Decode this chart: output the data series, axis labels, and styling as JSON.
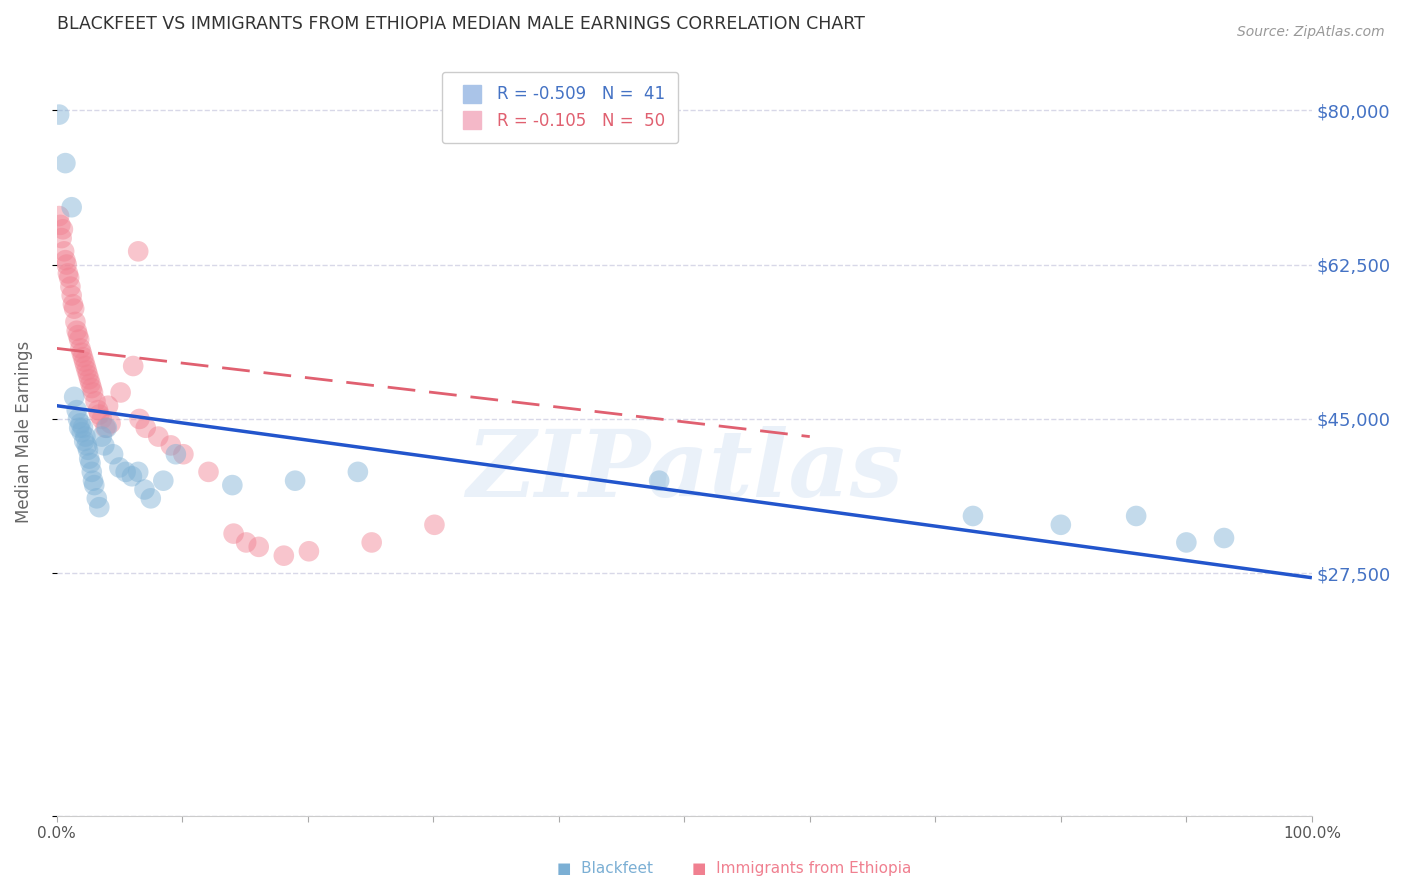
{
  "title": "BLACKFEET VS IMMIGRANTS FROM ETHIOPIA MEDIAN MALE EARNINGS CORRELATION CHART",
  "source": "Source: ZipAtlas.com",
  "ylabel": "Median Male Earnings",
  "yticks": [
    0,
    27500,
    45000,
    62500,
    80000
  ],
  "ytick_labels": [
    "",
    "$27,500",
    "$45,000",
    "$62,500",
    "$80,000"
  ],
  "ylim": [
    0,
    87000
  ],
  "xlim": [
    0,
    1.0
  ],
  "blackfeet_color": "#7bafd4",
  "ethiopia_color": "#f08090",
  "blackfeet_scatter": [
    [
      0.002,
      79500
    ],
    [
      0.007,
      74000
    ],
    [
      0.012,
      69000
    ],
    [
      0.014,
      47500
    ],
    [
      0.016,
      46000
    ],
    [
      0.017,
      45000
    ],
    [
      0.018,
      44000
    ],
    [
      0.019,
      44500
    ],
    [
      0.02,
      43500
    ],
    [
      0.021,
      44000
    ],
    [
      0.022,
      42500
    ],
    [
      0.023,
      43000
    ],
    [
      0.024,
      42000
    ],
    [
      0.025,
      41500
    ],
    [
      0.026,
      40500
    ],
    [
      0.027,
      40000
    ],
    [
      0.028,
      39000
    ],
    [
      0.029,
      38000
    ],
    [
      0.03,
      37500
    ],
    [
      0.032,
      36000
    ],
    [
      0.034,
      35000
    ],
    [
      0.036,
      43000
    ],
    [
      0.038,
      42000
    ],
    [
      0.04,
      44000
    ],
    [
      0.045,
      41000
    ],
    [
      0.05,
      39500
    ],
    [
      0.055,
      39000
    ],
    [
      0.06,
      38500
    ],
    [
      0.065,
      39000
    ],
    [
      0.07,
      37000
    ],
    [
      0.075,
      36000
    ],
    [
      0.085,
      38000
    ],
    [
      0.095,
      41000
    ],
    [
      0.14,
      37500
    ],
    [
      0.19,
      38000
    ],
    [
      0.24,
      39000
    ],
    [
      0.48,
      38000
    ],
    [
      0.73,
      34000
    ],
    [
      0.8,
      33000
    ],
    [
      0.86,
      34000
    ],
    [
      0.9,
      31000
    ],
    [
      0.93,
      31500
    ]
  ],
  "ethiopia_scatter": [
    [
      0.002,
      68000
    ],
    [
      0.003,
      67000
    ],
    [
      0.004,
      65500
    ],
    [
      0.005,
      66500
    ],
    [
      0.006,
      64000
    ],
    [
      0.007,
      63000
    ],
    [
      0.008,
      62500
    ],
    [
      0.009,
      61500
    ],
    [
      0.01,
      61000
    ],
    [
      0.011,
      60000
    ],
    [
      0.012,
      59000
    ],
    [
      0.013,
      58000
    ],
    [
      0.014,
      57500
    ],
    [
      0.015,
      56000
    ],
    [
      0.016,
      55000
    ],
    [
      0.017,
      54500
    ],
    [
      0.018,
      54000
    ],
    [
      0.019,
      53000
    ],
    [
      0.02,
      52500
    ],
    [
      0.021,
      52000
    ],
    [
      0.022,
      51500
    ],
    [
      0.023,
      51000
    ],
    [
      0.024,
      50500
    ],
    [
      0.025,
      50000
    ],
    [
      0.026,
      49500
    ],
    [
      0.027,
      49000
    ],
    [
      0.028,
      48500
    ],
    [
      0.029,
      48000
    ],
    [
      0.031,
      47000
    ],
    [
      0.033,
      46000
    ],
    [
      0.034,
      45500
    ],
    [
      0.036,
      45000
    ],
    [
      0.039,
      44000
    ],
    [
      0.041,
      46500
    ],
    [
      0.043,
      44500
    ],
    [
      0.051,
      48000
    ],
    [
      0.061,
      51000
    ],
    [
      0.066,
      45000
    ],
    [
      0.071,
      44000
    ],
    [
      0.081,
      43000
    ],
    [
      0.091,
      42000
    ],
    [
      0.101,
      41000
    ],
    [
      0.121,
      39000
    ],
    [
      0.141,
      32000
    ],
    [
      0.151,
      31000
    ],
    [
      0.065,
      64000
    ],
    [
      0.161,
      30500
    ],
    [
      0.181,
      29500
    ],
    [
      0.201,
      30000
    ],
    [
      0.251,
      31000
    ],
    [
      0.301,
      33000
    ]
  ],
  "blackfeet_line": {
    "x0": 0.0,
    "y0": 46500,
    "x1": 1.0,
    "y1": 27000
  },
  "ethiopia_line": {
    "x0": 0.0,
    "y0": 53000,
    "x1": 0.6,
    "y1": 43000
  },
  "watermark": "ZIPatlas",
  "background_color": "#ffffff",
  "grid_color": "#d8d8e8",
  "title_color": "#333333",
  "axis_label_color": "#666666",
  "right_ytick_color": "#4472c4",
  "source_color": "#999999",
  "legend_blue_color": "#4472c4",
  "legend_pink_color": "#e06070"
}
